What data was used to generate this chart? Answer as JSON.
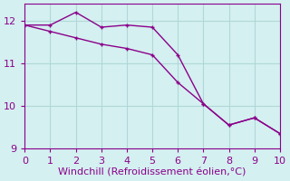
{
  "line1_x": [
    0,
    1,
    2,
    3,
    4,
    5,
    6,
    7,
    8,
    9,
    10
  ],
  "line1_y": [
    11.9,
    11.9,
    12.2,
    11.85,
    11.9,
    11.85,
    11.2,
    10.05,
    9.55,
    9.72,
    9.35
  ],
  "line2_x": [
    0,
    1,
    2,
    3,
    4,
    5,
    6,
    7,
    8,
    9,
    10
  ],
  "line2_y": [
    11.9,
    11.75,
    11.6,
    11.45,
    11.35,
    11.2,
    10.55,
    10.05,
    9.55,
    9.72,
    9.35
  ],
  "color": "#8b008b",
  "xlabel": "Windchill (Refroidissement éolien,°C)",
  "xlim": [
    0,
    10
  ],
  "ylim": [
    9.0,
    12.4
  ],
  "yticks": [
    9,
    10,
    11,
    12
  ],
  "xticks": [
    0,
    1,
    2,
    3,
    4,
    5,
    6,
    7,
    8,
    9,
    10
  ],
  "background_color": "#d4f0f0",
  "grid_color": "#b0d8d8",
  "xlabel_fontsize": 8,
  "tick_fontsize": 8,
  "linewidth": 1.0,
  "markersize": 3.0
}
